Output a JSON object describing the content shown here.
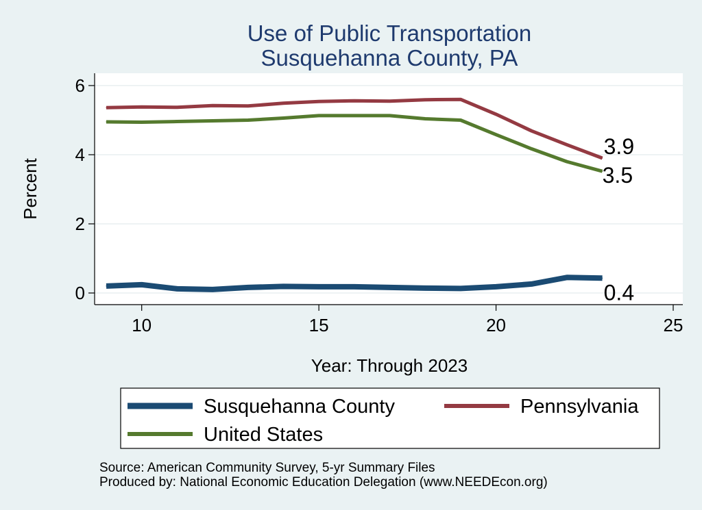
{
  "chart_data": {
    "type": "line",
    "title": "Use of Public Transportation",
    "subtitle": "Susquehanna County, PA",
    "xlabel": "Year: Through 2023",
    "ylabel": "Percent",
    "xlim": [
      9,
      25
    ],
    "ylim": [
      0,
      6
    ],
    "x_ticks": [
      10,
      15,
      20,
      25
    ],
    "y_ticks": [
      0,
      2,
      4,
      6
    ],
    "x_tick_labels": [
      "10",
      "15",
      "20",
      "25"
    ],
    "y_tick_labels": [
      "0",
      "2",
      "4",
      "6"
    ],
    "grid": true,
    "legend_position": "bottom",
    "x": [
      9,
      10,
      11,
      12,
      13,
      14,
      15,
      16,
      17,
      18,
      19,
      20,
      21,
      22,
      23
    ],
    "series": [
      {
        "name": "Susquehanna County",
        "color": "#1b4b73",
        "values": [
          0.2,
          0.24,
          0.12,
          0.1,
          0.16,
          0.19,
          0.18,
          0.18,
          0.16,
          0.14,
          0.13,
          0.18,
          0.26,
          0.45,
          0.43
        ],
        "end_label": "0.4"
      },
      {
        "name": "Pennsylvania",
        "color": "#943a42",
        "values": [
          5.36,
          5.38,
          5.37,
          5.42,
          5.41,
          5.49,
          5.54,
          5.56,
          5.55,
          5.59,
          5.6,
          5.17,
          4.69,
          4.29,
          3.9
        ],
        "end_label": "3.9"
      },
      {
        "name": "United States",
        "color": "#557a2e",
        "values": [
          4.95,
          4.94,
          4.96,
          4.98,
          5.0,
          5.06,
          5.13,
          5.13,
          5.13,
          5.04,
          5.0,
          4.58,
          4.17,
          3.8,
          3.52
        ],
        "end_label": "3.5"
      }
    ]
  },
  "source_line": "Source: American Community Survey, 5-yr Summary Files",
  "produced_line": "Produced by: National Economic Education Delegation (www.NEEDEcon.org)"
}
